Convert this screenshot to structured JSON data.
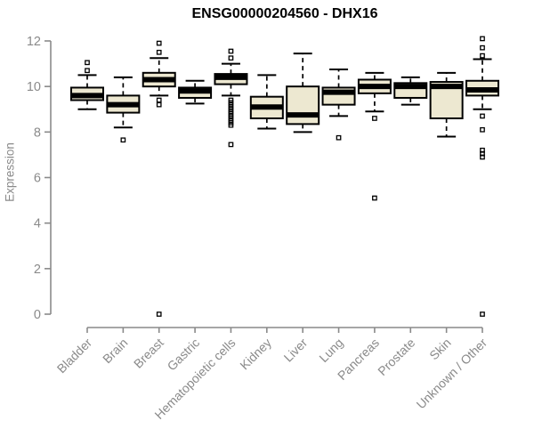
{
  "title": "ENSG00000204560 - DHX16",
  "chart_data": {
    "type": "boxplot",
    "title": "ENSG00000204560 - DHX16",
    "xlabel": "",
    "ylabel": "Expression",
    "ylim": [
      0,
      12
    ],
    "yticks": [
      0,
      2,
      4,
      6,
      8,
      10,
      12
    ],
    "grid": false,
    "legend": "none",
    "categories": [
      "Bladder",
      "Brain",
      "Breast",
      "Gastric",
      "Hematopoietic cells",
      "Kidney",
      "Liver",
      "Lung",
      "Pancreas",
      "Prostate",
      "Skin",
      "Unknown / Other"
    ],
    "boxes": [
      {
        "category": "Bladder",
        "whisker_low": 9.0,
        "q1": 9.4,
        "median": 9.6,
        "q3": 9.95,
        "whisker_high": 10.5,
        "outliers": [
          10.7,
          11.05
        ]
      },
      {
        "category": "Brain",
        "whisker_low": 8.2,
        "q1": 8.85,
        "median": 9.2,
        "q3": 9.6,
        "whisker_high": 10.4,
        "outliers": [
          7.65
        ]
      },
      {
        "category": "Breast",
        "whisker_low": 9.6,
        "q1": 10.0,
        "median": 10.3,
        "q3": 10.6,
        "whisker_high": 11.25,
        "outliers": [
          11.9,
          11.5,
          9.4,
          9.2,
          0
        ]
      },
      {
        "category": "Gastric",
        "whisker_low": 9.25,
        "q1": 9.5,
        "median": 9.8,
        "q3": 9.95,
        "whisker_high": 10.25,
        "outliers": []
      },
      {
        "category": "Hematopoietic cells",
        "whisker_low": 9.6,
        "q1": 10.1,
        "median": 10.4,
        "q3": 10.55,
        "whisker_high": 11.0,
        "outliers": [
          11.55,
          11.25,
          9.4,
          9.3,
          9.2,
          9.1,
          9.0,
          8.9,
          8.8,
          8.7,
          8.6,
          8.5,
          8.4,
          8.3,
          7.45
        ]
      },
      {
        "category": "Kidney",
        "whisker_low": 8.15,
        "q1": 8.6,
        "median": 9.1,
        "q3": 9.55,
        "whisker_high": 10.5,
        "outliers": []
      },
      {
        "category": "Liver",
        "whisker_low": 8.0,
        "q1": 8.35,
        "median": 8.75,
        "q3": 10.0,
        "whisker_high": 11.45,
        "outliers": []
      },
      {
        "category": "Lung",
        "whisker_low": 8.7,
        "q1": 9.2,
        "median": 9.75,
        "q3": 9.95,
        "whisker_high": 10.75,
        "outliers": [
          7.75
        ]
      },
      {
        "category": "Pancreas",
        "whisker_low": 8.9,
        "q1": 9.7,
        "median": 10.0,
        "q3": 10.3,
        "whisker_high": 10.6,
        "outliers": [
          8.6,
          5.1
        ]
      },
      {
        "category": "Prostate",
        "whisker_low": 9.2,
        "q1": 9.5,
        "median": 10.0,
        "q3": 10.15,
        "whisker_high": 10.4,
        "outliers": []
      },
      {
        "category": "Skin",
        "whisker_low": 7.8,
        "q1": 8.6,
        "median": 10.0,
        "q3": 10.2,
        "whisker_high": 10.6,
        "outliers": []
      },
      {
        "category": "Unknown / Other",
        "whisker_low": 9.0,
        "q1": 9.6,
        "median": 9.85,
        "q3": 10.25,
        "whisker_high": 11.2,
        "outliers": [
          12.1,
          11.7,
          11.35,
          8.7,
          8.1,
          7.2,
          7.05,
          6.9,
          0
        ]
      }
    ]
  },
  "colors": {
    "background": "#FFFFFF",
    "box_fill": "#EDE8D1",
    "box_stroke": "#000000",
    "median": "#000000",
    "whisker": "#000000",
    "outlier": "#000000",
    "axis": "#8A8A8A",
    "tick_label": "#8A8A8A",
    "axis_label": "#8A8A8A",
    "title": "#000000"
  }
}
